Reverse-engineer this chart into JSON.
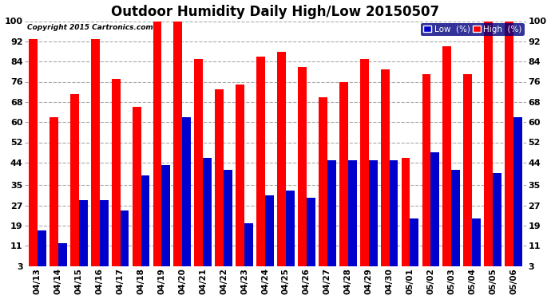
{
  "title": "Outdoor Humidity Daily High/Low 20150507",
  "copyright": "Copyright 2015 Cartronics.com",
  "categories": [
    "04/13",
    "04/14",
    "04/15",
    "04/16",
    "04/17",
    "04/18",
    "04/19",
    "04/20",
    "04/21",
    "04/22",
    "04/23",
    "04/24",
    "04/25",
    "04/26",
    "04/27",
    "04/28",
    "04/29",
    "04/30",
    "05/01",
    "05/02",
    "05/03",
    "05/04",
    "05/05",
    "05/06"
  ],
  "high": [
    93,
    62,
    71,
    93,
    77,
    66,
    100,
    100,
    85,
    73,
    75,
    86,
    88,
    82,
    70,
    76,
    85,
    81,
    46,
    79,
    90,
    79,
    100,
    100
  ],
  "low": [
    17,
    12,
    29,
    29,
    25,
    39,
    43,
    62,
    46,
    41,
    20,
    31,
    33,
    30,
    45,
    45,
    45,
    45,
    22,
    48,
    41,
    22,
    40,
    62
  ],
  "high_color": "#ff0000",
  "low_color": "#0000cc",
  "bg_color": "#ffffff",
  "grid_color": "#aaaaaa",
  "ylim_min": 3,
  "ylim_max": 100,
  "yticks": [
    3,
    11,
    19,
    27,
    35,
    44,
    52,
    60,
    68,
    76,
    84,
    92,
    100
  ],
  "title_fontsize": 12,
  "legend_low_label": "Low  (%)",
  "legend_high_label": "High  (%)"
}
